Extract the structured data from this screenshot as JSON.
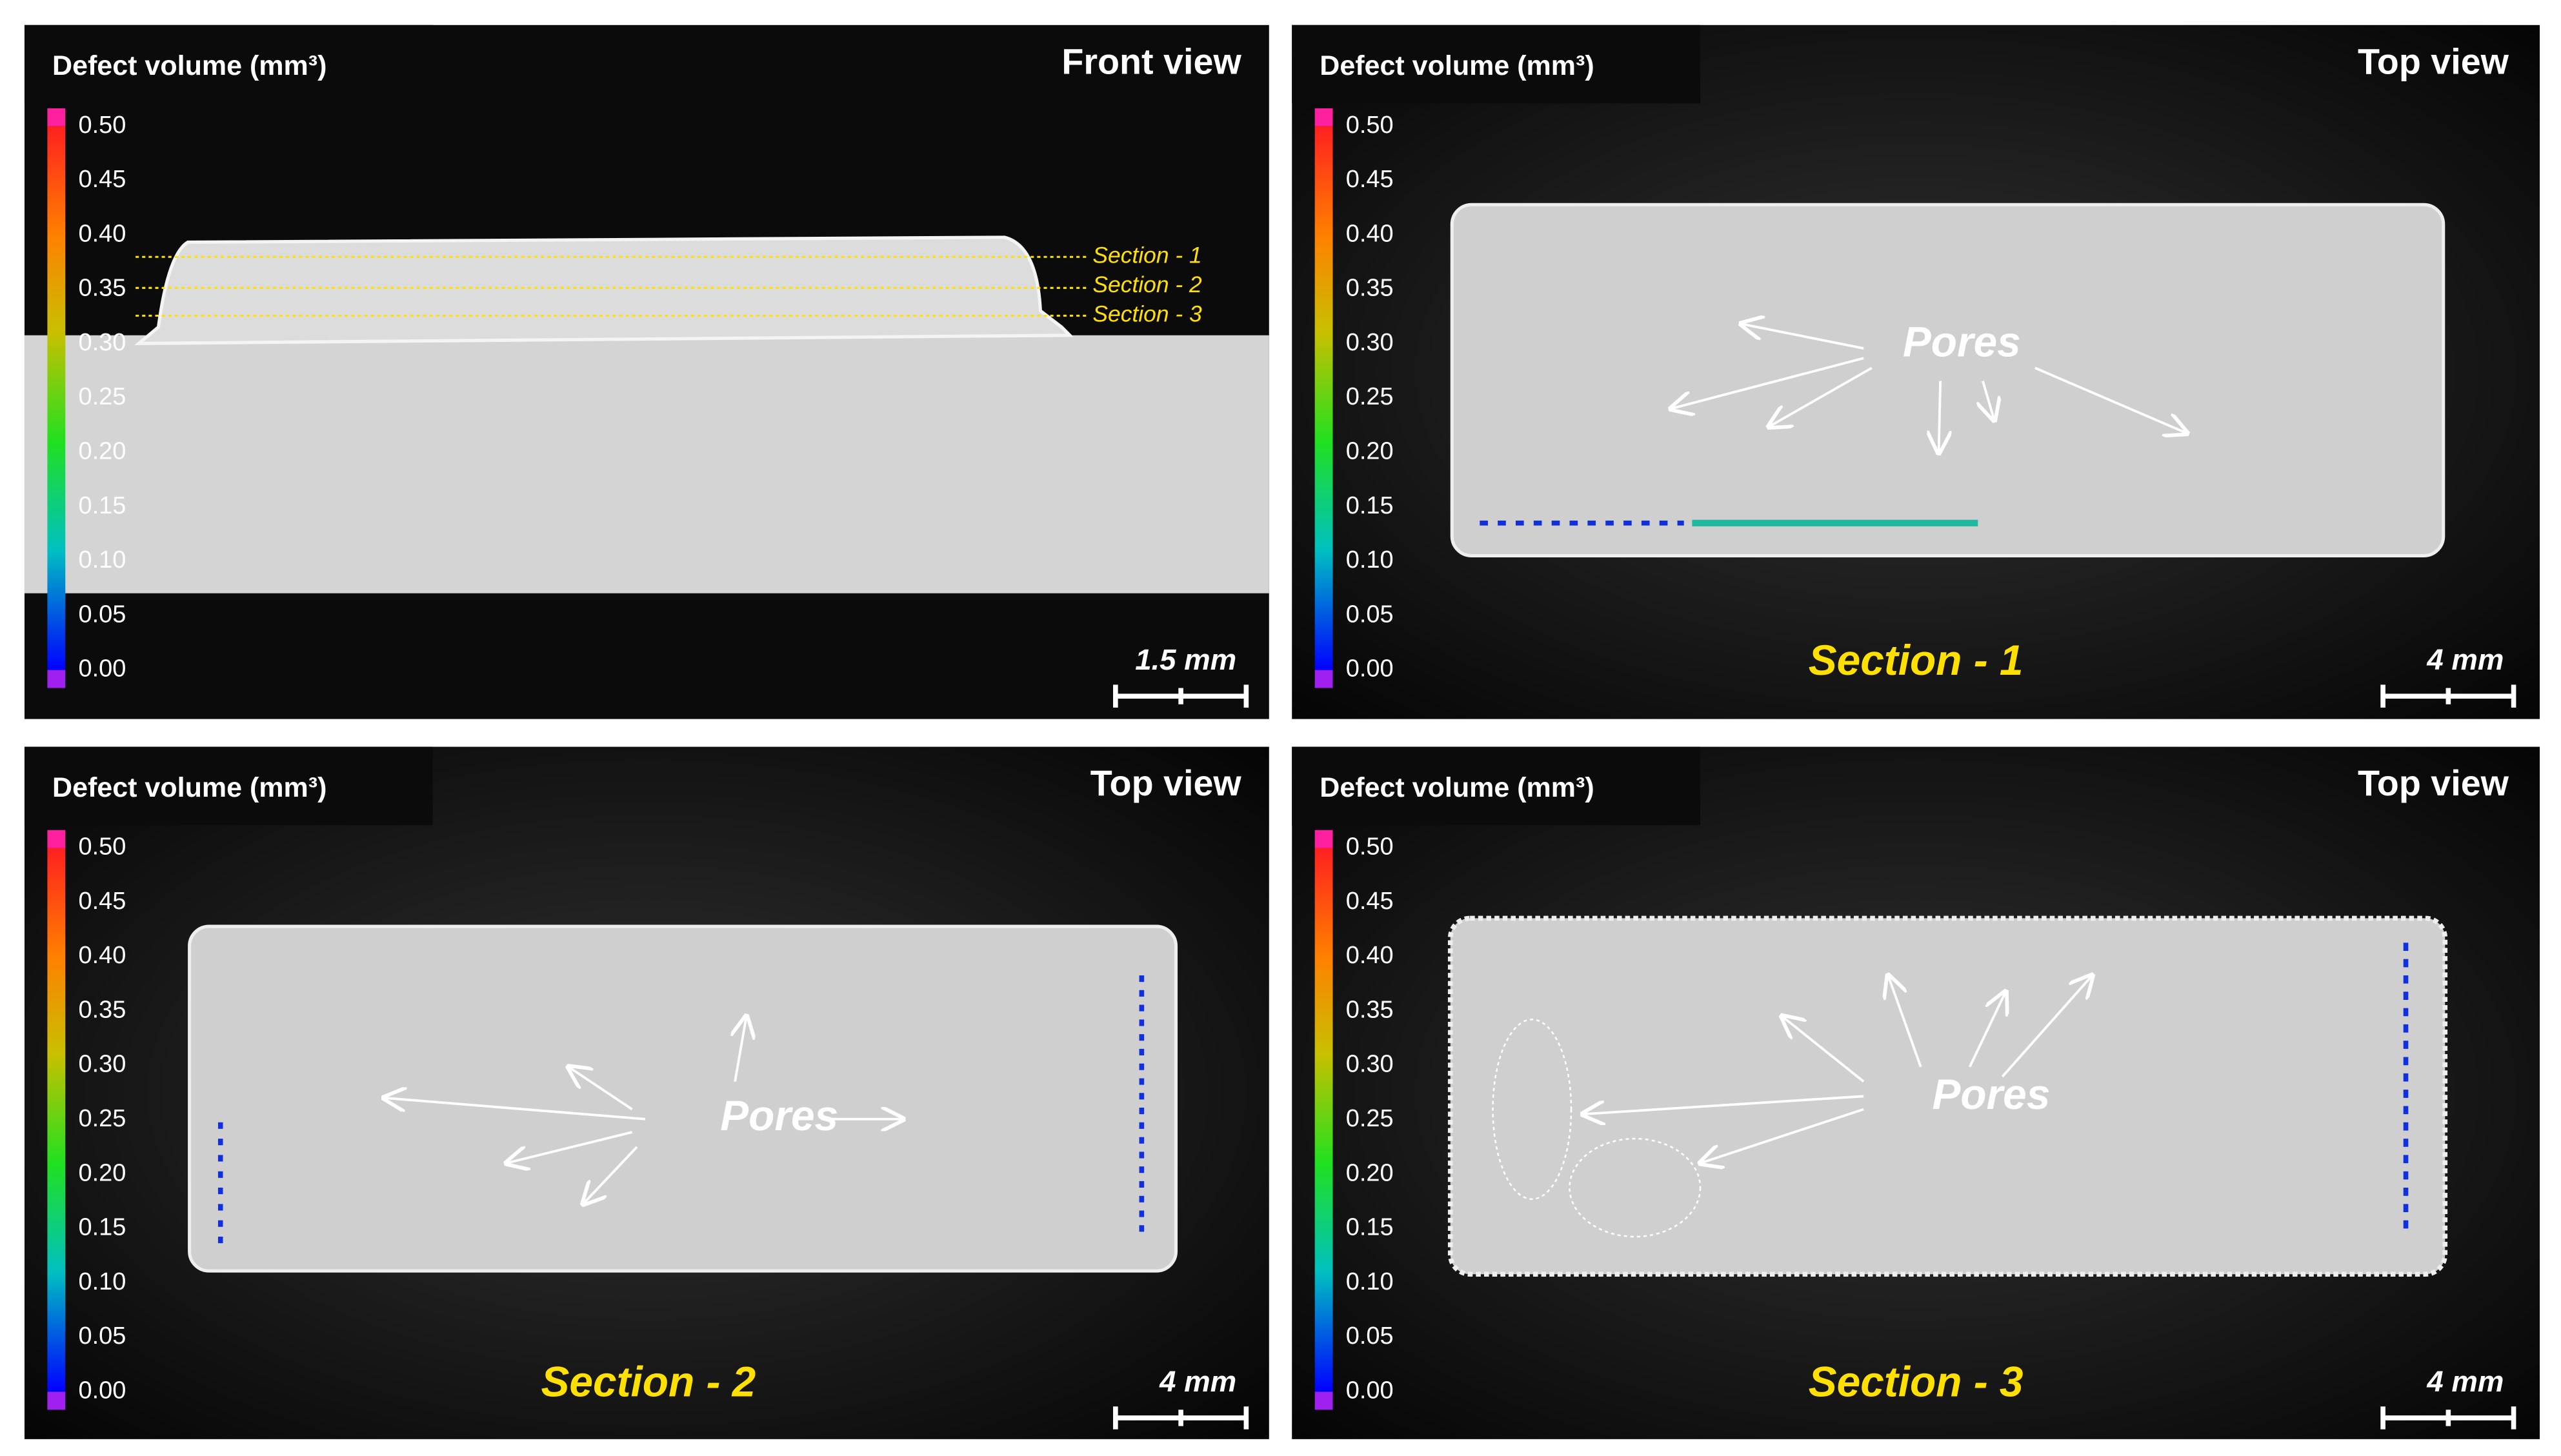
{
  "panels": [
    {
      "colorbar_title": "Defect volume (mm³)",
      "colorbar_ticks": [
        "0.50",
        "0.45",
        "0.40",
        "0.35",
        "0.30",
        "0.25",
        "0.20",
        "0.15",
        "0.10",
        "0.05",
        "0.00"
      ],
      "view": "Front view",
      "scale_bar": "1.5 mm",
      "section_lines": [
        "Section - 1",
        "Section - 2",
        "Section - 3"
      ]
    },
    {
      "colorbar_title": "Defect volume (mm³)",
      "colorbar_ticks": [
        "0.50",
        "0.45",
        "0.40",
        "0.35",
        "0.30",
        "0.25",
        "0.20",
        "0.15",
        "0.10",
        "0.05",
        "0.00"
      ],
      "view": "Top view",
      "scale_bar": "4 mm",
      "annotation": "Pores",
      "section": "Section - 1"
    },
    {
      "colorbar_title": "Defect volume (mm³)",
      "colorbar_ticks": [
        "0.50",
        "0.45",
        "0.40",
        "0.35",
        "0.30",
        "0.25",
        "0.20",
        "0.15",
        "0.10",
        "0.05",
        "0.00"
      ],
      "view": "Top view",
      "scale_bar": "4 mm",
      "annotation": "Pores",
      "section": "Section - 2"
    },
    {
      "colorbar_title": "Defect volume (mm³)",
      "colorbar_ticks": [
        "0.50",
        "0.45",
        "0.40",
        "0.35",
        "0.30",
        "0.25",
        "0.20",
        "0.15",
        "0.10",
        "0.05",
        "0.00"
      ],
      "view": "Top view",
      "scale_bar": "4 mm",
      "annotation": "Pores",
      "section": "Section - 3"
    }
  ]
}
